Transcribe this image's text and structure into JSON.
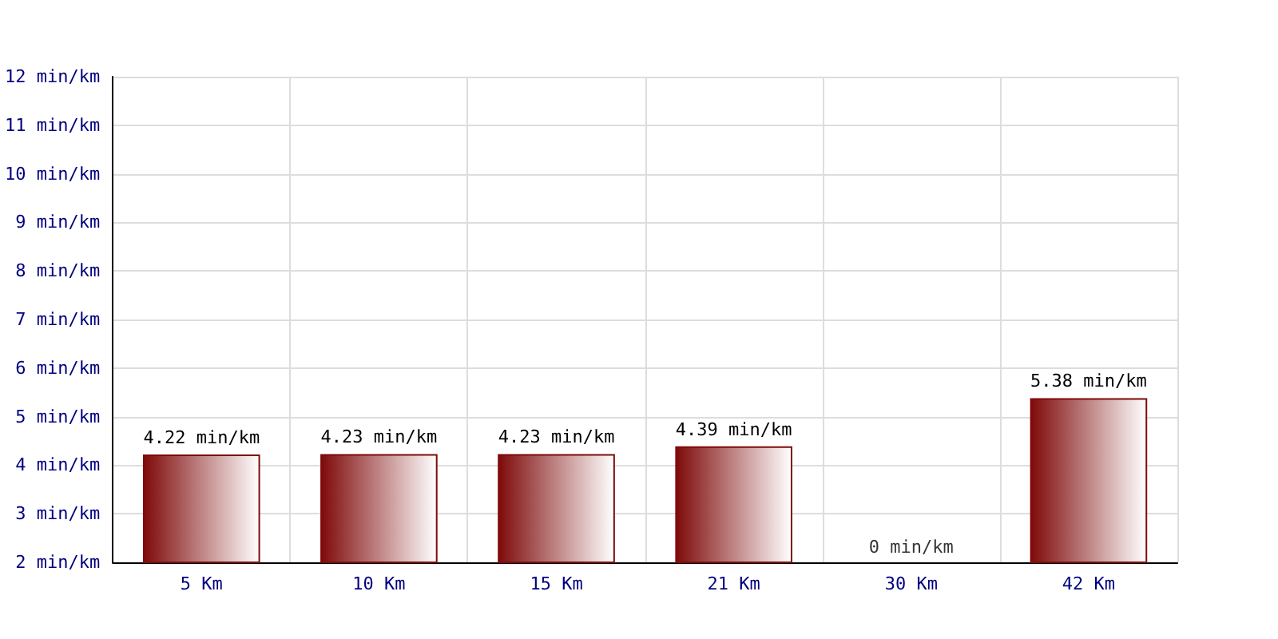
{
  "chart_data": {
    "type": "bar",
    "categories": [
      "5 Km",
      "10 Km",
      "15 Km",
      "21 Km",
      "30 Km",
      "42 Km"
    ],
    "values": [
      4.22,
      4.23,
      4.23,
      4.39,
      null,
      5.38
    ],
    "value_labels": [
      "4.22 min/km",
      "4.23 min/km",
      "4.23 min/km",
      "4.39 min/km",
      "0 min/km",
      "5.38 min/km"
    ],
    "color": "#7f0a0a",
    "ylim": [
      2,
      12
    ],
    "yticks": [
      {
        "value": 2,
        "label": "2 min/km"
      },
      {
        "value": 3,
        "label": "3 min/km"
      },
      {
        "value": 4,
        "label": "4 min/km"
      },
      {
        "value": 5,
        "label": "5 min/km"
      },
      {
        "value": 6,
        "label": "6 min/km"
      },
      {
        "value": 7,
        "label": "7 min/km"
      },
      {
        "value": 8,
        "label": "8 min/km"
      },
      {
        "value": 9,
        "label": "9 min/km"
      },
      {
        "value": 10,
        "label": "10 min/km"
      },
      {
        "value": 11,
        "label": "11 min/km"
      },
      {
        "value": 12,
        "label": "12 min/km"
      }
    ],
    "grid": true
  }
}
